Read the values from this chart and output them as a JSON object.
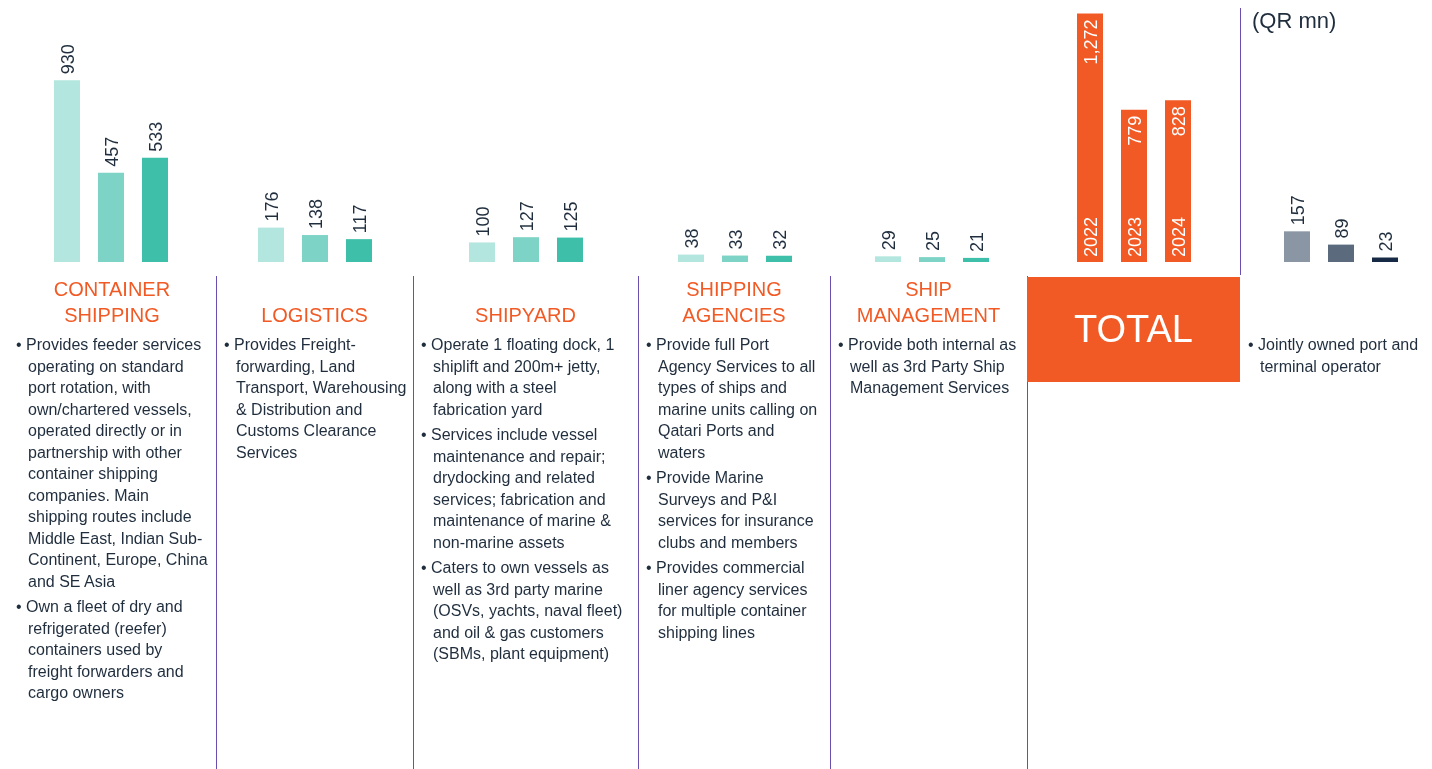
{
  "chart_data": [
    {
      "type": "bar",
      "title": "CONTAINER SHIPPING",
      "categories": [
        null,
        null,
        null
      ],
      "values": [
        930,
        457,
        533
      ],
      "colors": [
        "#b3e6de",
        "#7dd3c6",
        "#3ebfa9"
      ],
      "ylim": [
        0,
        1300
      ],
      "data_labels": true,
      "annotations": [
        "• Provides feeder services operating on standard port rotation, with own/chartered vessels, operated directly or in partnership with other container shipping companies. Main shipping routes include Middle East, Indian Sub-Continent, Europe, China and SE Asia",
        "• Own a fleet of dry and refrigerated (reefer) containers used by freight forwarders and cargo owners"
      ]
    },
    {
      "type": "bar",
      "title": "LOGISTICS",
      "categories": [
        null,
        null,
        null
      ],
      "values": [
        176,
        138,
        117
      ],
      "colors": [
        "#b3e6de",
        "#7dd3c6",
        "#3ebfa9"
      ],
      "ylim": [
        0,
        1300
      ],
      "data_labels": true,
      "annotations": [
        "• Provides Freight-forwarding, Land Transport, Warehousing & Distribution and Customs Clearance Services"
      ]
    },
    {
      "type": "bar",
      "title": "SHIPYARD",
      "categories": [
        null,
        null,
        null
      ],
      "values": [
        100,
        127,
        125
      ],
      "colors": [
        "#b3e6de",
        "#7dd3c6",
        "#3ebfa9"
      ],
      "ylim": [
        0,
        1300
      ],
      "data_labels": true,
      "annotations": [
        "• Operate 1 floating dock, 1 shiplift and 200m+ jetty, along with a steel fabrication yard",
        "• Services include vessel maintenance and repair; drydocking and related services; fabrication and maintenance of marine & non-marine assets",
        "• Caters to own vessels as well as 3rd party marine (OSVs, yachts, naval fleet) and oil & gas customers (SBMs, plant equipment)"
      ]
    },
    {
      "type": "bar",
      "title": "SHIPPING AGENCIES",
      "categories": [
        null,
        null,
        null
      ],
      "values": [
        38,
        33,
        32
      ],
      "colors": [
        "#b3e6de",
        "#7dd3c6",
        "#3ebfa9"
      ],
      "ylim": [
        0,
        1300
      ],
      "data_labels": true,
      "annotations": [
        "• Provide full Port Agency Services to all types of ships and marine units calling on Qatari Ports and waters",
        "• Provide Marine Surveys and P&I services for insurance clubs and members",
        "• Provides commercial liner agency services for multiple container shipping lines"
      ]
    },
    {
      "type": "bar",
      "title": "SHIP MANAGEMENT",
      "categories": [
        null,
        null,
        null
      ],
      "values": [
        29,
        25,
        21
      ],
      "colors": [
        "#b3e6de",
        "#7dd3c6",
        "#3ebfa9"
      ],
      "ylim": [
        0,
        1300
      ],
      "data_labels": true,
      "annotations": [
        "• Provide both internal as well as 3rd Party Ship Management Services"
      ]
    },
    {
      "type": "bar",
      "title": "TOTAL",
      "categories": [
        "2022",
        "2023",
        "2024"
      ],
      "values": [
        1272,
        779,
        828
      ],
      "value_labels": [
        "1,272",
        "779",
        "828"
      ],
      "colors": [
        "#f15a24",
        "#f15a24",
        "#f15a24"
      ],
      "ylim": [
        0,
        1300
      ]
    },
    {
      "type": "bar",
      "ylabel": "(QR mn)",
      "categories": [
        null,
        null,
        null
      ],
      "values": [
        157,
        89,
        23
      ],
      "colors": [
        "#8a96a3",
        "#5b6b7d",
        "#172a45"
      ],
      "ylim": [
        0,
        1300
      ],
      "data_labels": true,
      "annotations": [
        "• Jointly owned port and terminal operator"
      ]
    }
  ]
}
